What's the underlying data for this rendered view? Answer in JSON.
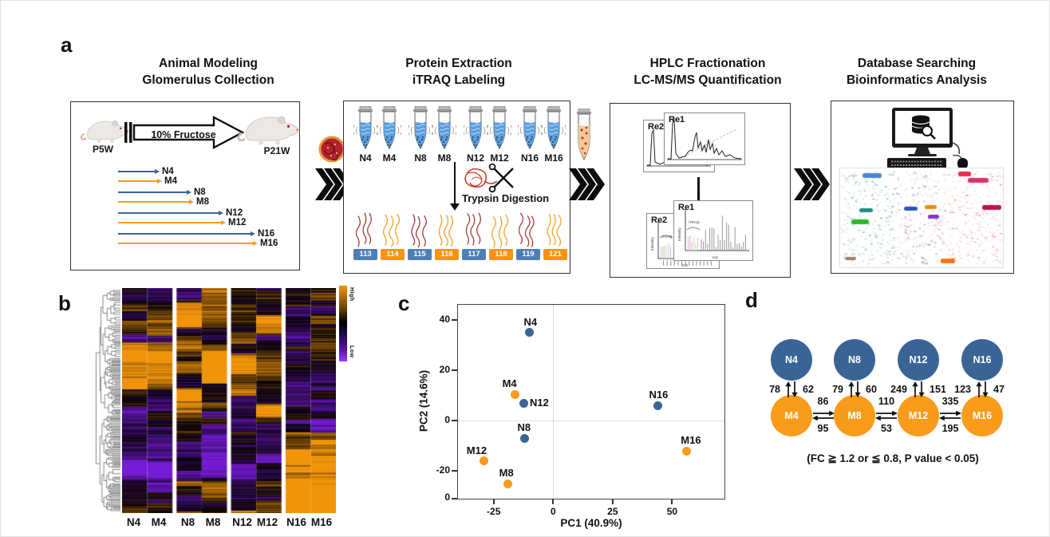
{
  "figure": {
    "panel_labels": [
      "a",
      "b",
      "c",
      "d"
    ]
  },
  "colors": {
    "n_blue": "#3A6495",
    "m_orange": "#F99B1B",
    "chip_blue": "#4E7EB8",
    "chip_orange": "#F89412",
    "peptide_red": "#A63E3E",
    "peptide_orange": "#F2A230",
    "heat_high": "#EE9408",
    "heat_low": "#6B1CCF",
    "ink": "#111111"
  },
  "panel_a": {
    "steps": [
      {
        "line1": "Animal Modeling",
        "line2": "Glomerulus Collection"
      },
      {
        "line1": "Protein Extraction",
        "line2": "iTRAQ Labeling"
      },
      {
        "line1": "HPLC Fractionation",
        "line2": "LC-MS/MS Quantification"
      },
      {
        "line1": "Database Searching",
        "line2": "Bioinformatics Analysis"
      }
    ],
    "animal_model": {
      "start_label": "P5W",
      "end_label": "P21W",
      "treatment": "10% Fructose",
      "timelines": [
        {
          "label": "N4",
          "series": "N",
          "weeks": 4
        },
        {
          "label": "M4",
          "series": "M",
          "weeks": 4
        },
        {
          "label": "N8",
          "series": "N",
          "weeks": 8
        },
        {
          "label": "M8",
          "series": "M",
          "weeks": 8
        },
        {
          "label": "N12",
          "series": "N",
          "weeks": 12
        },
        {
          "label": "M12",
          "series": "M",
          "weeks": 12
        },
        {
          "label": "N16",
          "series": "N",
          "weeks": 16
        },
        {
          "label": "M16",
          "series": "M",
          "weeks": 16
        }
      ]
    },
    "extraction": {
      "sample_labels": [
        "N4",
        "M4",
        "N8",
        "M8",
        "N12",
        "M12",
        "N16",
        "M16"
      ],
      "digestion_label": "Trypsin Digestion",
      "itraq_tags": [
        {
          "label": "113",
          "series": "N"
        },
        {
          "label": "114",
          "series": "M"
        },
        {
          "label": "115",
          "series": "N"
        },
        {
          "label": "116",
          "series": "M"
        },
        {
          "label": "117",
          "series": "N"
        },
        {
          "label": "118",
          "series": "M"
        },
        {
          "label": "119",
          "series": "N"
        },
        {
          "label": "121",
          "series": "M"
        }
      ]
    },
    "hplc": {
      "chromatogram_labels": [
        "Re2",
        "Re1"
      ],
      "spectrum_labels": [
        "Re2",
        "Re1"
      ],
      "itraq_region_label": "iTRAQ",
      "spectrum_y_label": "Intensity",
      "spectrum_x_label": "m/z"
    }
  },
  "chart_data": [
    {
      "panel": "b",
      "type": "heatmap",
      "columns": [
        "N4",
        "M4",
        "N8",
        "M8",
        "N12",
        "M12",
        "N16",
        "M16"
      ],
      "column_groups": [
        [
          "N4",
          "M4"
        ],
        [
          "N8",
          "M8"
        ],
        [
          "N12",
          "M12"
        ],
        [
          "N16",
          "M16"
        ]
      ],
      "rows": "hierarchically clustered proteins (dendrogram at left); individual cell values not legible",
      "colorscale": {
        "high_color": "#EE9408",
        "mid_color": "#000000",
        "low_color": "#7A22E0",
        "legend_high": "High",
        "legend_low": "Low"
      },
      "legend_position": "top-right"
    },
    {
      "panel": "c",
      "type": "scatter",
      "xlabel": "PC1 (40.9%)",
      "ylabel": "PC2 (14.6%)",
      "xticks": [
        -25,
        0,
        25,
        50
      ],
      "yticks": [
        40,
        20,
        0,
        -20
      ],
      "y_axis_corner_label": "0",
      "xlim": [
        -40,
        72
      ],
      "ylim": [
        -31,
        46
      ],
      "grid": "dotted reference lines at x=0 and y=0",
      "points": [
        {
          "label": "N4",
          "series": "N",
          "x": -10,
          "y": 35
        },
        {
          "label": "M4",
          "series": "M",
          "x": -16,
          "y": 10.5
        },
        {
          "label": "N12",
          "series": "N",
          "x": -12.5,
          "y": 7
        },
        {
          "label": "N8",
          "series": "N",
          "x": -12,
          "y": -7
        },
        {
          "label": "M12",
          "series": "M",
          "x": -29,
          "y": -16
        },
        {
          "label": "M8",
          "series": "M",
          "x": -19,
          "y": -25
        },
        {
          "label": "N16",
          "series": "N",
          "x": 44,
          "y": 6
        },
        {
          "label": "M16",
          "series": "M",
          "x": 56,
          "y": -12
        }
      ]
    },
    {
      "panel": "d",
      "type": "diagram",
      "caption": "(FC ≧ 1.2 or ≦ 0.8, P value < 0.05)",
      "vertical_comparisons": [
        {
          "top": "N4",
          "bottom": "M4",
          "up": 78,
          "down": 62
        },
        {
          "top": "N8",
          "bottom": "M8",
          "up": 79,
          "down": 60
        },
        {
          "top": "N12",
          "bottom": "M12",
          "up": 249,
          "down": 151
        },
        {
          "top": "N16",
          "bottom": "M16",
          "up": 123,
          "down": 47
        }
      ],
      "horizontal_comparisons": [
        {
          "left": "M4",
          "right": "M8",
          "forward": 86,
          "reverse": 95
        },
        {
          "left": "M8",
          "right": "M12",
          "forward": 110,
          "reverse": 53
        },
        {
          "left": "M12",
          "right": "M16",
          "forward": 335,
          "reverse": 195
        }
      ]
    }
  ]
}
